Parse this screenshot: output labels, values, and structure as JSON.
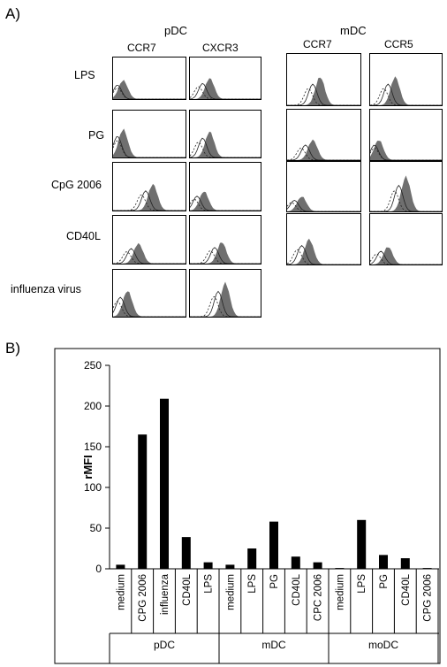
{
  "panel_a": {
    "label": "A)",
    "groups": [
      {
        "name": "pDC",
        "markers": [
          "CCR7",
          "CXCR3"
        ]
      },
      {
        "name": "mDC",
        "markers": [
          "CCR7",
          "CCR5"
        ]
      }
    ],
    "stimuli": [
      "LPS",
      "PG",
      "CpG 2006",
      "CD40L",
      "influenza virus"
    ]
  },
  "panel_b": {
    "label": "B)",
    "chart_data": {
      "type": "bar",
      "ylabel": "rMFI",
      "ylim": [
        0,
        250
      ],
      "yticks": [
        0,
        50,
        100,
        150,
        200,
        250
      ],
      "bar_color": "#000000",
      "groups": [
        {
          "name": "pDC",
          "categories": [
            "medium",
            "CPG 2006",
            "influenza",
            "CD40L",
            "LPS"
          ],
          "values": [
            5,
            165,
            209,
            39,
            8
          ]
        },
        {
          "name": "mDC",
          "categories": [
            "medium",
            "LPS",
            "PG",
            "CD40L",
            "CPC 2006"
          ],
          "values": [
            5,
            25,
            58,
            15,
            8
          ]
        },
        {
          "name": "moDC",
          "categories": [
            "medium",
            "LPS",
            "PG",
            "CD40L",
            "CPG 2006"
          ],
          "values": [
            1,
            60,
            17,
            13,
            1
          ]
        }
      ]
    }
  }
}
